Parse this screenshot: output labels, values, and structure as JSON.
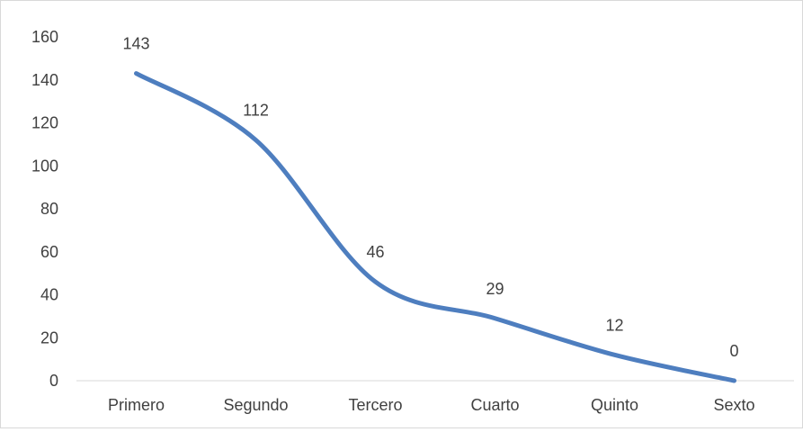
{
  "chart_data": {
    "type": "line",
    "categories": [
      "Primero",
      "Segundo",
      "Tercero",
      "Cuarto",
      "Quinto",
      "Sexto"
    ],
    "values": [
      143,
      112,
      46,
      29,
      12,
      0
    ],
    "ylim": [
      0,
      160
    ],
    "yticks": [
      0,
      20,
      40,
      60,
      80,
      100,
      120,
      140,
      160
    ],
    "smooth": true,
    "grid": false,
    "data_labels": true,
    "legend": "none",
    "line_color": "#4e7ebf",
    "axis_color": "#d9d9d9",
    "text_color": "#404040"
  }
}
